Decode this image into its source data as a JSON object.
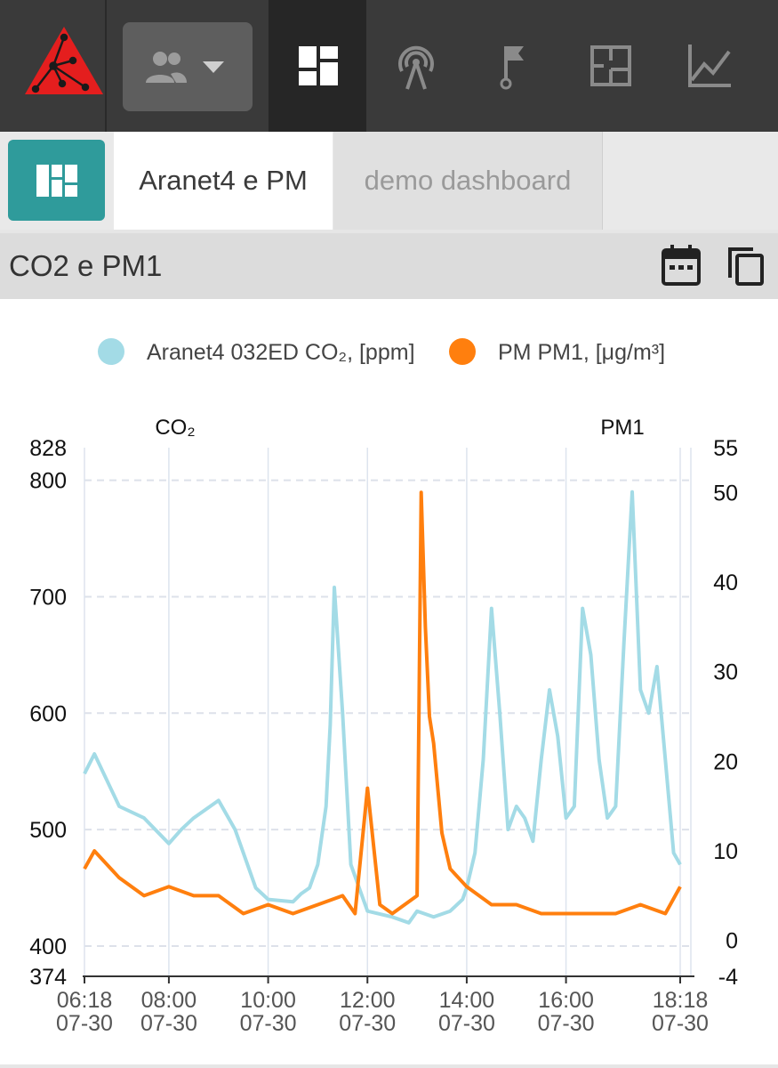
{
  "tabs": [
    {
      "label": "Aranet4 e PM"
    },
    {
      "label": "demo dashboard"
    }
  ],
  "panel": {
    "title": "CO2 e PM1"
  },
  "colors": {
    "co2": "#a3dbe6",
    "pm1": "#ff7f0e",
    "teal": "#2f9b9b",
    "logo": "#e41e1e"
  },
  "icons": [
    "logo-icon",
    "users-icon",
    "dashboard-icon",
    "antenna-icon",
    "flag-icon",
    "floorplan-icon",
    "chart-icon",
    "dashboard-menu-icon",
    "calendar-icon",
    "copy-icon"
  ],
  "chart_data": {
    "type": "line",
    "legend_position": "top-center",
    "grid": true,
    "series": [
      {
        "name": "Aranet4 032ED CO₂, [ppm]",
        "axis": "left",
        "x": [
          "06:18",
          "06:30",
          "07:00",
          "07:30",
          "08:00",
          "08:15",
          "08:30",
          "09:00",
          "09:20",
          "09:30",
          "09:45",
          "10:00",
          "10:30",
          "10:40",
          "10:50",
          "11:00",
          "11:10",
          "11:15",
          "11:20",
          "11:30",
          "11:40",
          "12:00",
          "12:30",
          "12:50",
          "13:00",
          "13:20",
          "13:40",
          "13:55",
          "14:00",
          "14:10",
          "14:20",
          "14:30",
          "14:40",
          "14:50",
          "15:00",
          "15:10",
          "15:20",
          "15:30",
          "15:40",
          "15:50",
          "16:00",
          "16:10",
          "16:20",
          "16:30",
          "16:40",
          "16:50",
          "17:00",
          "17:10",
          "17:20",
          "17:30",
          "17:40",
          "17:50",
          "18:00",
          "18:10",
          "18:18"
        ],
        "y": [
          548,
          565,
          520,
          510,
          488,
          500,
          510,
          525,
          500,
          480,
          450,
          440,
          438,
          445,
          450,
          470,
          520,
          590,
          708,
          600,
          470,
          430,
          425,
          420,
          430,
          425,
          430,
          440,
          450,
          480,
          560,
          690,
          600,
          500,
          520,
          510,
          490,
          560,
          620,
          580,
          510,
          520,
          690,
          650,
          560,
          510,
          520,
          660,
          790,
          620,
          600,
          640,
          560,
          480,
          470
        ]
      },
      {
        "name": "PM PM1, [μg/m³]",
        "axis": "right",
        "x": [
          "06:18",
          "06:30",
          "07:00",
          "07:30",
          "08:00",
          "08:30",
          "09:00",
          "09:30",
          "10:00",
          "10:30",
          "11:00",
          "11:30",
          "11:45",
          "12:00",
          "12:15",
          "12:30",
          "13:00",
          "13:05",
          "13:10",
          "13:15",
          "13:20",
          "13:30",
          "13:40",
          "14:00",
          "14:30",
          "15:00",
          "15:30",
          "16:00",
          "16:30",
          "17:00",
          "17:30",
          "18:00",
          "18:18"
        ],
        "y": [
          8,
          10,
          7,
          5,
          6,
          5,
          5,
          3,
          4,
          3,
          4,
          5,
          3,
          17,
          4,
          3,
          5,
          50,
          35,
          25,
          22,
          12,
          8,
          6,
          4,
          4,
          3,
          3,
          3,
          3,
          4,
          3,
          6
        ]
      }
    ],
    "left_axis": {
      "label": "CO₂",
      "min": 374,
      "max": 828,
      "ticks": [
        374,
        400,
        500,
        600,
        700,
        800,
        828
      ]
    },
    "right_axis": {
      "label": "PM1",
      "min": -4,
      "max": 55,
      "ticks": [
        -4,
        0,
        10,
        20,
        30,
        40,
        50,
        55
      ]
    },
    "x_ticks": [
      {
        "time": "06:18",
        "date": "07-30"
      },
      {
        "time": "08:00",
        "date": "07-30"
      },
      {
        "time": "10:00",
        "date": "07-30"
      },
      {
        "time": "12:00",
        "date": "07-30"
      },
      {
        "time": "14:00",
        "date": "07-30"
      },
      {
        "time": "16:00",
        "date": "07-30"
      },
      {
        "time": "18:18",
        "date": "07-30"
      }
    ]
  }
}
